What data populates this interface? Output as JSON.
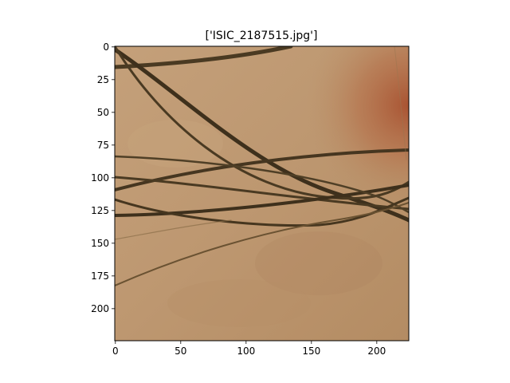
{
  "figure": {
    "title": "['ISIC_2187515.jpg']"
  },
  "image": {
    "description_colors": {
      "skin_base": "#b98f66",
      "skin_light": "#c9a47c",
      "skin_red": "#b0603f",
      "hair": "#4a3a22",
      "hair_dark": "#3a2d1a"
    }
  },
  "axes": {
    "xlim": [
      0,
      224
    ],
    "ylim": [
      224,
      0
    ],
    "x_ticks": [
      {
        "value": 0,
        "label": "0"
      },
      {
        "value": 50,
        "label": "50"
      },
      {
        "value": 100,
        "label": "100"
      },
      {
        "value": 150,
        "label": "150"
      },
      {
        "value": 200,
        "label": "200"
      }
    ],
    "y_ticks": [
      {
        "value": 0,
        "label": "0"
      },
      {
        "value": 25,
        "label": "25"
      },
      {
        "value": 50,
        "label": "50"
      },
      {
        "value": 75,
        "label": "75"
      },
      {
        "value": 100,
        "label": "100"
      },
      {
        "value": 125,
        "label": "125"
      },
      {
        "value": 150,
        "label": "150"
      },
      {
        "value": 175,
        "label": "175"
      },
      {
        "value": 200,
        "label": "200"
      }
    ]
  }
}
